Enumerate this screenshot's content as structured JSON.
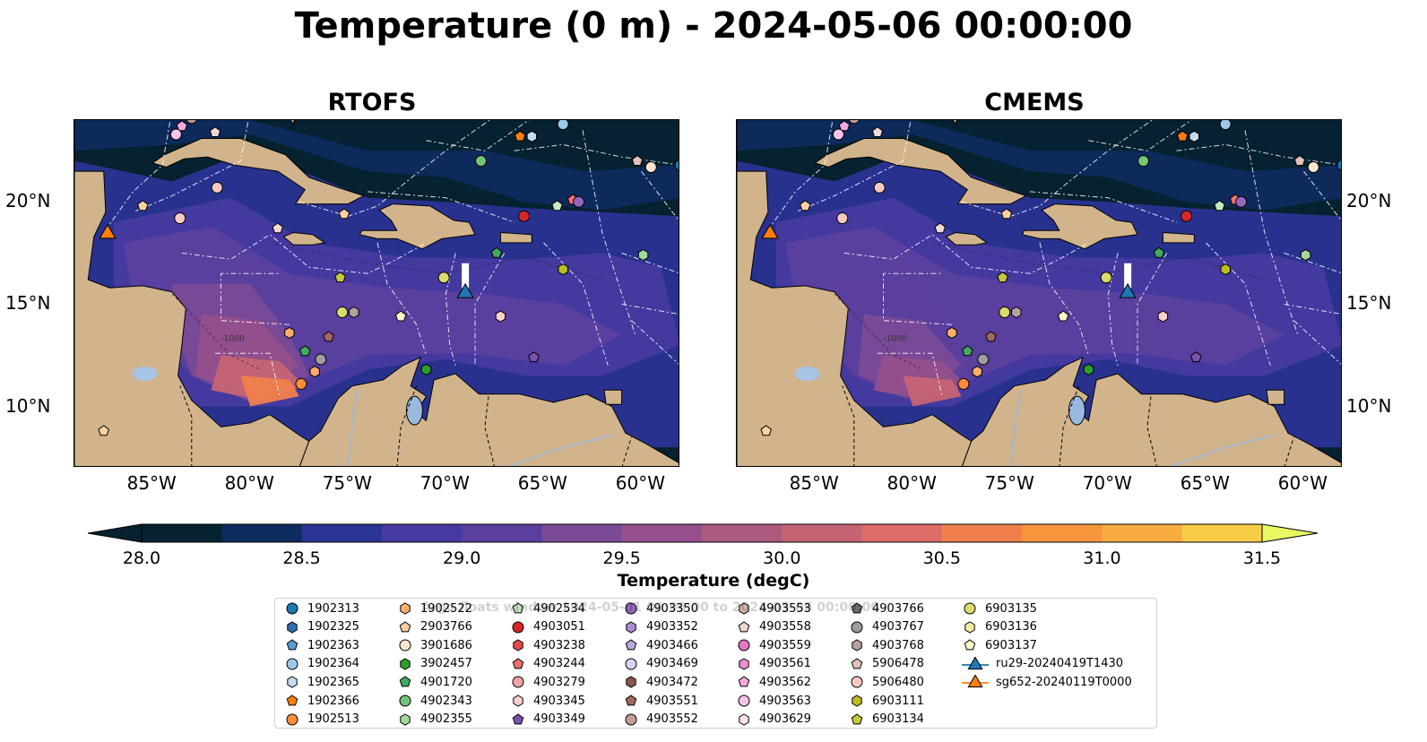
{
  "title": "Temperature (0 m) - 2024-05-06 00:00:00",
  "panels": [
    {
      "title": "RTOFS",
      "model": "rtofs"
    },
    {
      "title": "CMEMS",
      "model": "cmems"
    }
  ],
  "map": {
    "lon_range": [
      -89,
      -58
    ],
    "lat_range": [
      7,
      24
    ],
    "lon_ticks": [
      "85°W",
      "80°W",
      "75°W",
      "70°W",
      "65°W",
      "60°W"
    ],
    "lon_tick_values": [
      -85,
      -80,
      -75,
      -70,
      -65,
      -60
    ],
    "lat_ticks": [
      "20°N",
      "15°N",
      "10°N"
    ],
    "lat_tick_values": [
      20,
      15,
      10
    ],
    "land_color": "#d2b48c",
    "bathymetry_label": "-1000"
  },
  "colorbar": {
    "label": "Temperature (degC)",
    "min": 28.0,
    "max": 31.5,
    "ticks": [
      "28.0",
      "28.5",
      "29.0",
      "29.5",
      "30.0",
      "30.5",
      "31.0",
      "31.5"
    ],
    "tick_values": [
      28.0,
      28.5,
      29.0,
      29.5,
      30.0,
      30.5,
      31.0,
      31.5
    ],
    "colors": [
      "#06212f",
      "#0e2b5e",
      "#2a3493",
      "#453aa0",
      "#5b3f9e",
      "#7a4a96",
      "#944f8c",
      "#ac5a7e",
      "#c66474",
      "#dc6c67",
      "#f07f4c",
      "#f7963d",
      "#f9ad3f",
      "#f6cc47"
    ],
    "under_color": "#06212f",
    "over_color": "#e9f862"
  },
  "watermark": "Argo floats window 2024-05-01 00:00:00 to 2024-05-06 00:00:00",
  "legend": [
    {
      "label": "1902313",
      "marker": "circle",
      "color": "#1f77b4"
    },
    {
      "label": "1902325",
      "marker": "hexagon",
      "color": "#2f6fb0"
    },
    {
      "label": "1902363",
      "marker": "pentagon",
      "color": "#5b9bd5"
    },
    {
      "label": "1902364",
      "marker": "circle",
      "color": "#9ecae9"
    },
    {
      "label": "1902365",
      "marker": "hexagon",
      "color": "#c6dbef"
    },
    {
      "label": "1902366",
      "marker": "pentagon",
      "color": "#ff7f0e"
    },
    {
      "label": "1902513",
      "marker": "circle",
      "color": "#fd8d3c"
    },
    {
      "label": "1902522",
      "marker": "hexagon",
      "color": "#fdae6b"
    },
    {
      "label": "2903766",
      "marker": "pentagon",
      "color": "#fdd0a2"
    },
    {
      "label": "3901686",
      "marker": "circle",
      "color": "#fee6ce"
    },
    {
      "label": "3902457",
      "marker": "hexagon",
      "color": "#2ca02c"
    },
    {
      "label": "4901720",
      "marker": "pentagon",
      "color": "#41ab5d"
    },
    {
      "label": "4902343",
      "marker": "circle",
      "color": "#74c476"
    },
    {
      "label": "4902355",
      "marker": "hexagon",
      "color": "#a1d99b"
    },
    {
      "label": "4902534",
      "marker": "pentagon",
      "color": "#c7e9c0"
    },
    {
      "label": "4903051",
      "marker": "circle",
      "color": "#d62728"
    },
    {
      "label": "4903238",
      "marker": "hexagon",
      "color": "#e34a4a"
    },
    {
      "label": "4903244",
      "marker": "pentagon",
      "color": "#f07070"
    },
    {
      "label": "4903279",
      "marker": "circle",
      "color": "#f4a3a3"
    },
    {
      "label": "4903345",
      "marker": "hexagon",
      "color": "#fcd0d0"
    },
    {
      "label": "4903349",
      "marker": "pentagon",
      "color": "#7b52ab"
    },
    {
      "label": "4903350",
      "marker": "circle",
      "color": "#9467bd"
    },
    {
      "label": "4903352",
      "marker": "hexagon",
      "color": "#a98bd1"
    },
    {
      "label": "4903466",
      "marker": "pentagon",
      "color": "#bca7e0"
    },
    {
      "label": "4903469",
      "marker": "circle",
      "color": "#dcd0f0"
    },
    {
      "label": "4903472",
      "marker": "hexagon",
      "color": "#8c564b"
    },
    {
      "label": "4903551",
      "marker": "pentagon",
      "color": "#a0695c"
    },
    {
      "label": "4903552",
      "marker": "circle",
      "color": "#c49c94"
    },
    {
      "label": "4903553",
      "marker": "hexagon",
      "color": "#d9b5ad"
    },
    {
      "label": "4903558",
      "marker": "pentagon",
      "color": "#f0d8d2"
    },
    {
      "label": "4903559",
      "marker": "circle",
      "color": "#e377c2"
    },
    {
      "label": "4903561",
      "marker": "hexagon",
      "color": "#ec8fd0"
    },
    {
      "label": "4903562",
      "marker": "pentagon",
      "color": "#f4a9de"
    },
    {
      "label": "4903563",
      "marker": "circle",
      "color": "#f7c4e8"
    },
    {
      "label": "4903629",
      "marker": "hexagon",
      "color": "#fbdff2"
    },
    {
      "label": "4903766",
      "marker": "pentagon",
      "color": "#6e6e6e"
    },
    {
      "label": "4903767",
      "marker": "circle",
      "color": "#9e9e9e"
    },
    {
      "label": "4903768",
      "marker": "hexagon",
      "color": "#b5a39f"
    },
    {
      "label": "5906478",
      "marker": "pentagon",
      "color": "#e3c1bb"
    },
    {
      "label": "5906480",
      "marker": "circle",
      "color": "#f6c9c3"
    },
    {
      "label": "6903111",
      "marker": "hexagon",
      "color": "#bcbd22"
    },
    {
      "label": "6903134",
      "marker": "pentagon",
      "color": "#c7c93a"
    },
    {
      "label": "6903135",
      "marker": "circle",
      "color": "#dbdb6a"
    },
    {
      "label": "6903136",
      "marker": "hexagon",
      "color": "#eded9b"
    },
    {
      "label": "6903137",
      "marker": "pentagon",
      "color": "#fafac8"
    },
    {
      "label": "ru29-20240419T1430",
      "marker": "triangle-line",
      "color": "#1f77b4"
    },
    {
      "label": "sg652-20240119T0000",
      "marker": "triangle-line",
      "color": "#ff7f0e"
    }
  ],
  "map_points": [
    {
      "id": "4903552",
      "lon": -83.0,
      "lat": 24.1
    },
    {
      "id": "4903562",
      "lon": -83.5,
      "lat": 23.7
    },
    {
      "id": "4903563",
      "lon": -83.8,
      "lat": 23.3
    },
    {
      "id": "4903558",
      "lon": -81.8,
      "lat": 23.4
    },
    {
      "id": "1902366",
      "lon": -66.2,
      "lat": 23.2
    },
    {
      "id": "1902365",
      "lon": -65.6,
      "lat": 23.2
    },
    {
      "id": "1902364",
      "lon": -64.0,
      "lat": 23.8
    },
    {
      "id": "4902343",
      "lon": -68.2,
      "lat": 22.0
    },
    {
      "id": "5906480",
      "lon": -81.7,
      "lat": 20.7
    },
    {
      "id": "2903766",
      "lon": -85.5,
      "lat": 19.8
    },
    {
      "id": "5906480",
      "lon": -83.6,
      "lat": 19.2
    },
    {
      "id": "2903766",
      "lon": -75.2,
      "lat": 19.4
    },
    {
      "id": "4903051",
      "lon": -66.0,
      "lat": 19.3
    },
    {
      "id": "4902534",
      "lon": -64.3,
      "lat": 19.8
    },
    {
      "id": "4903244",
      "lon": -63.5,
      "lat": 20.1
    },
    {
      "id": "4903350",
      "lon": -63.2,
      "lat": 20.0
    },
    {
      "id": "5906478",
      "lon": -60.2,
      "lat": 22.0
    },
    {
      "id": "3901686",
      "lon": -59.5,
      "lat": 21.7
    },
    {
      "id": "1902313",
      "lon": -58.0,
      "lat": 21.8
    },
    {
      "id": "4903558",
      "lon": -78.6,
      "lat": 18.7
    },
    {
      "id": "4901720",
      "lon": -67.4,
      "lat": 17.5
    },
    {
      "id": "6903111",
      "lon": -64.0,
      "lat": 16.7
    },
    {
      "id": "4902355",
      "lon": -59.9,
      "lat": 17.4
    },
    {
      "id": "6903134",
      "lon": -75.4,
      "lat": 16.3
    },
    {
      "id": "6903135",
      "lon": -70.1,
      "lat": 16.3
    },
    {
      "id": "6903135",
      "lon": -75.3,
      "lat": 14.6
    },
    {
      "id": "4903768",
      "lon": -74.7,
      "lat": 14.6
    },
    {
      "id": "6903137",
      "lon": -72.3,
      "lat": 14.4
    },
    {
      "id": "4903345",
      "lon": -67.2,
      "lat": 14.4
    },
    {
      "id": "1902522",
      "lon": -78.0,
      "lat": 13.6
    },
    {
      "id": "4903551",
      "lon": -76.0,
      "lat": 13.4
    },
    {
      "id": "4901720",
      "lon": -77.2,
      "lat": 12.7
    },
    {
      "id": "4903767",
      "lon": -76.4,
      "lat": 12.3
    },
    {
      "id": "1902522",
      "lon": -76.7,
      "lat": 11.7
    },
    {
      "id": "1902513",
      "lon": -77.4,
      "lat": 11.1
    },
    {
      "id": "4903349",
      "lon": -65.5,
      "lat": 12.4
    },
    {
      "id": "3902457",
      "lon": -71.0,
      "lat": 11.8
    },
    {
      "id": "2903766",
      "lon": -87.5,
      "lat": 8.8
    }
  ],
  "gliders": [
    {
      "id": "ru29-20240419T1430",
      "lon": -69.0,
      "lat": 15.6,
      "track_to_lat": 17.0,
      "color": "#1f77b4"
    },
    {
      "id": "sg652-20240119T0000",
      "lon": -87.3,
      "lat": 18.5,
      "track_to_lat": 18.5,
      "color": "#ff7f0e"
    }
  ]
}
